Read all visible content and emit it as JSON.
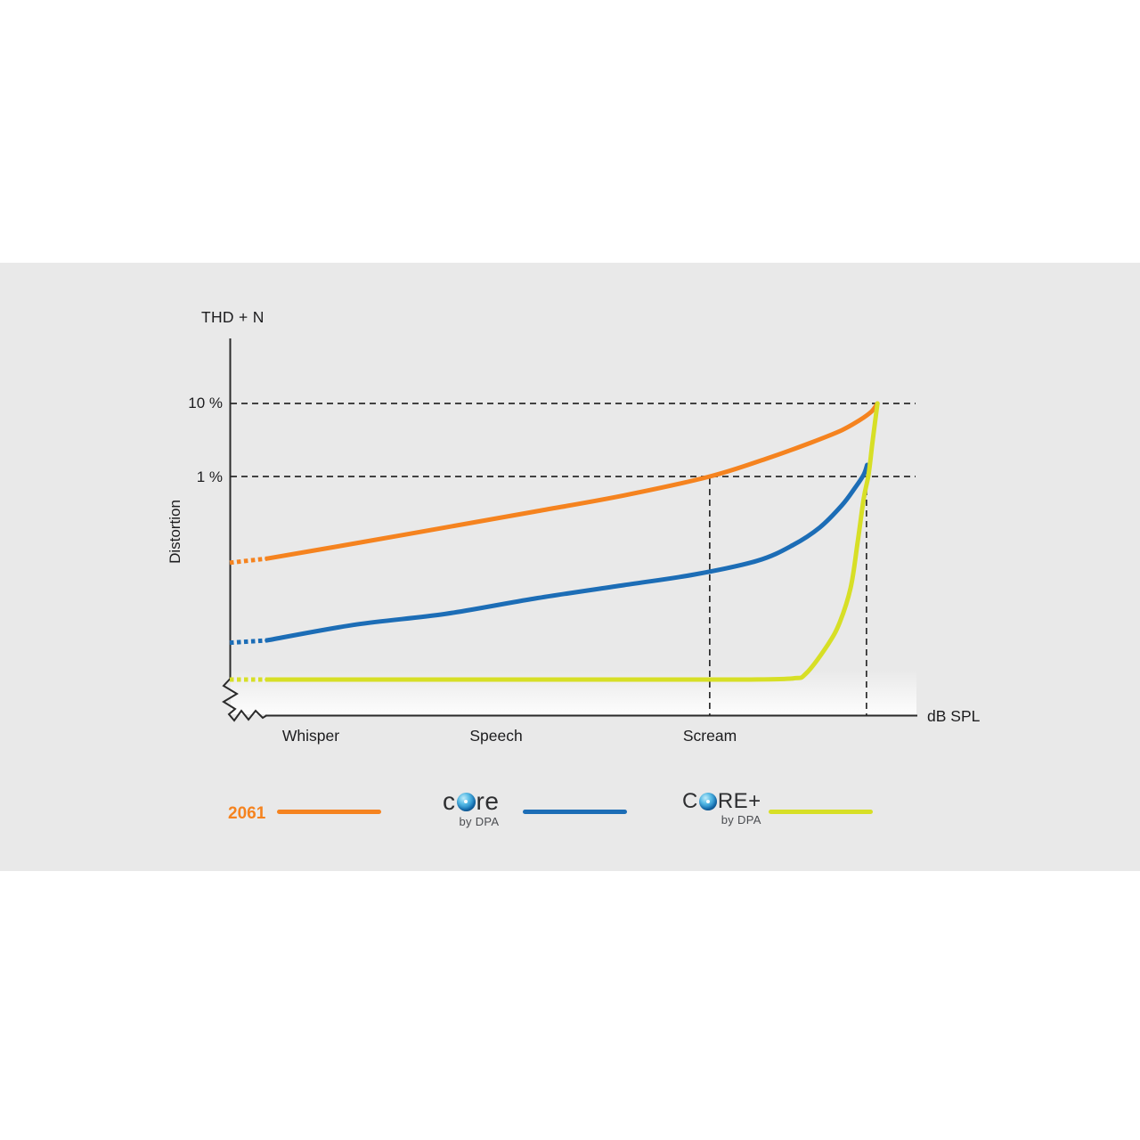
{
  "colors": {
    "page_background": "#ffffff",
    "panel_background": "#e9e9e9",
    "axis": "#2b2b2b",
    "text": "#1d1d1f",
    "orange_2061": "#f5831f",
    "blue_core": "#1c6db6",
    "yellow_core_plus": "#d7df26"
  },
  "chart": {
    "title": "THD + N",
    "y_axis_label": "Distortion",
    "x_axis_unit_label": "dB SPL",
    "y_ticks": [
      "10 %",
      "1 %"
    ],
    "x_ticks": [
      "Whisper",
      "Speech",
      "Scream"
    ]
  },
  "chart_data": {
    "type": "line",
    "title": "THD + N",
    "xlabel": "dB SPL",
    "ylabel": "Distortion",
    "y_axis": {
      "scale": "log",
      "unit": "% distortion (THD+N)",
      "gridlines_pct": [
        10,
        1
      ],
      "tick_labels": [
        "10 %",
        "1 %"
      ]
    },
    "x_axis": {
      "scale": "relative SPL 0-100 (no numeric ticks shown)",
      "axis_break_at_origin": true,
      "tick_labels": [
        {
          "label": "Whisper",
          "spl": 11.8
        },
        {
          "label": "Speech",
          "spl": 38.7
        },
        {
          "label": "Scream",
          "spl": 69.8
        }
      ]
    },
    "annotations": {
      "horizontal_dashed_at_pct": [
        10,
        1
      ],
      "vertical_dashed_at_spl": [
        69.8,
        92.6
      ],
      "note": "2061 reaches 1% THD at Scream level; CORE reaches 1% near max SPL; CORE+ stays at noise floor until clipping sharply to 10% at max SPL"
    },
    "series": [
      {
        "name": "2061",
        "color": "#f5831f",
        "solid_from_spl": 5.4,
        "points": [
          [
            0,
            0.066
          ],
          [
            5.4,
            0.075
          ],
          [
            18.4,
            0.122
          ],
          [
            31.3,
            0.2
          ],
          [
            44.3,
            0.33
          ],
          [
            57.3,
            0.55
          ],
          [
            69.8,
            1.0
          ],
          [
            78,
            1.75
          ],
          [
            84.5,
            2.9
          ],
          [
            89,
            4.3
          ],
          [
            91.6,
            5.9
          ],
          [
            93.3,
            7.7
          ],
          [
            94.2,
            10
          ]
        ]
      },
      {
        "name": "CORE by DPA",
        "color": "#1c6db6",
        "solid_from_spl": 5.4,
        "points": [
          [
            0,
            0.0053
          ],
          [
            5.4,
            0.0057
          ],
          [
            18.4,
            0.0094
          ],
          [
            31.3,
            0.0131
          ],
          [
            44.3,
            0.0213
          ],
          [
            57.3,
            0.0325
          ],
          [
            67.6,
            0.0455
          ],
          [
            76.7,
            0.07
          ],
          [
            81.9,
            0.115
          ],
          [
            85.8,
            0.2
          ],
          [
            89,
            0.4
          ],
          [
            90.9,
            0.69
          ],
          [
            92.2,
            1.06
          ],
          [
            92.7,
            1.44
          ]
        ]
      },
      {
        "name": "CORE+ by DPA",
        "color": "#d7df26",
        "solid_from_spl": 5.4,
        "points": [
          [
            0,
            0.00166
          ],
          [
            5.4,
            0.00166
          ],
          [
            20,
            0.00166
          ],
          [
            40,
            0.00166
          ],
          [
            60,
            0.00166
          ],
          [
            75,
            0.00166
          ],
          [
            81.9,
            0.00172
          ],
          [
            83.8,
            0.002
          ],
          [
            87,
            0.005
          ],
          [
            88.7,
            0.01
          ],
          [
            90.3,
            0.03
          ],
          [
            91.3,
            0.122
          ],
          [
            92.2,
            0.5
          ],
          [
            92.9,
            1.06
          ],
          [
            93.5,
            3.07
          ],
          [
            94.2,
            10
          ]
        ]
      }
    ]
  },
  "legend": {
    "items": [
      {
        "id": "2061",
        "label": "2061",
        "color": "#f5831f"
      },
      {
        "id": "core",
        "label_pre": "c",
        "label_post": "re",
        "sub": "by DPA",
        "color": "#1c6db6"
      },
      {
        "id": "core-plus",
        "label_pre": "C",
        "label_post": "RE+",
        "sub": "by DPA",
        "color": "#d7df26"
      }
    ]
  }
}
